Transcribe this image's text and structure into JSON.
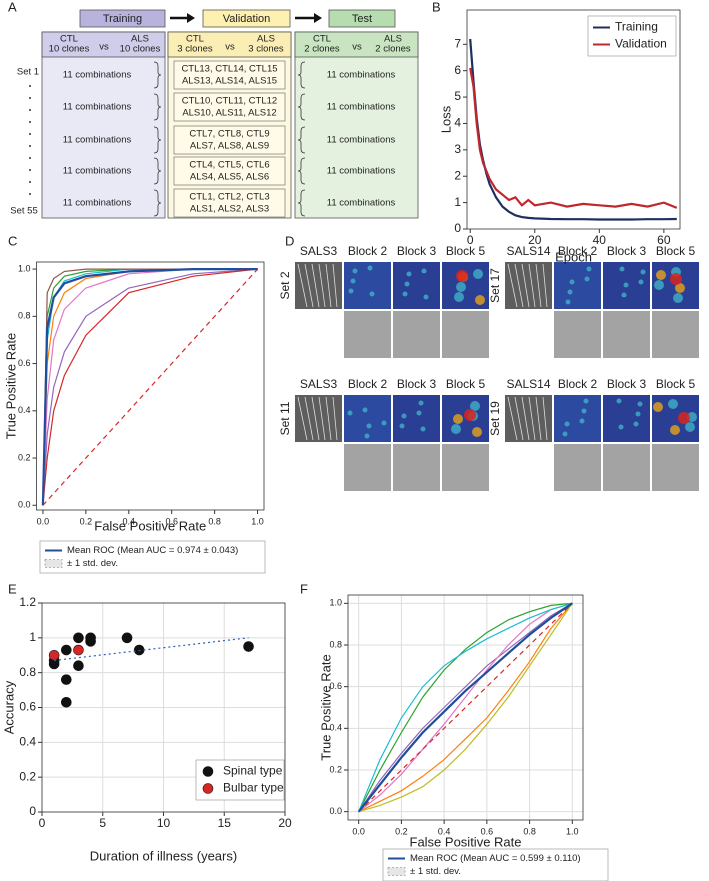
{
  "panels": [
    "A",
    "B",
    "C",
    "D",
    "E",
    "F"
  ],
  "diagram": {
    "stages": [
      "Training",
      "Validation",
      "Test"
    ],
    "columns": [
      {
        "ctl": "CTL",
        "ctl_n": "10 clones",
        "vs": "vs",
        "als": "ALS",
        "als_n": "10 clones",
        "rows": [
          "11 combinations",
          "11 combinations",
          "11 combinations",
          "11 combinations",
          "11 combinations"
        ]
      },
      {
        "ctl": "CTL",
        "ctl_n": "3 clones",
        "vs": "vs",
        "als": "ALS",
        "als_n": "3 clones",
        "rows": [
          [
            "CTL13, CTL14, CTL15",
            "ALS13, ALS14, ALS15"
          ],
          [
            "CTL10, CTL11, CTL12",
            "ALS10, ALS11, ALS12"
          ],
          [
            "CTL7, CTL8, CTL9",
            "ALS7, ALS8, ALS9"
          ],
          [
            "CTL4, CTL5, CTL6",
            "ALS4, ALS5, ALS6"
          ],
          [
            "CTL1, CTL2, CTL3",
            "ALS1, ALS2, ALS3"
          ]
        ]
      },
      {
        "ctl": "CTL",
        "ctl_n": "2 clones",
        "vs": "vs",
        "als": "ALS",
        "als_n": "2 clones",
        "rows": [
          "11 combinations",
          "11 combinations",
          "11 combinations",
          "11 combinations",
          "11 combinations"
        ]
      }
    ],
    "set_first": "Set 1",
    "set_last": "Set 55"
  },
  "heatmaps": [
    {
      "sample": "SALS3",
      "set": "Set 2",
      "blocks": [
        "Block 2",
        "Block 3",
        "Block 5"
      ]
    },
    {
      "sample": "SALS14",
      "set": "Set 17",
      "blocks": [
        "Block 2",
        "Block 3",
        "Block 5"
      ]
    },
    {
      "sample": "SALS3",
      "set": "Set 11",
      "blocks": [
        "Block 2",
        "Block 3",
        "Block 5"
      ]
    },
    {
      "sample": "SALS14",
      "set": "Set 19",
      "blocks": [
        "Block 2",
        "Block 3",
        "Block 5"
      ]
    }
  ],
  "chart_data": [
    {
      "type": "line",
      "x_label": "Epoch",
      "y_label": "Loss",
      "xlim": [
        -1,
        65
      ],
      "ylim": [
        0,
        8.3
      ],
      "xticks": [
        0,
        20,
        40,
        60
      ],
      "yticks": [
        0,
        1,
        2,
        3,
        4,
        5,
        6,
        7
      ],
      "grid": false,
      "legend": "upper right",
      "x": [
        0,
        1,
        2,
        3,
        4,
        5,
        6,
        8,
        10,
        12,
        14,
        16,
        18,
        20,
        25,
        30,
        35,
        40,
        45,
        50,
        55,
        60,
        64
      ],
      "series": [
        {
          "name": "Training",
          "color": "#1f2f5f",
          "values": [
            7.2,
            5.6,
            4.2,
            3.2,
            2.6,
            2.1,
            1.7,
            1.2,
            0.85,
            0.65,
            0.52,
            0.45,
            0.42,
            0.4,
            0.38,
            0.37,
            0.37,
            0.36,
            0.36,
            0.36,
            0.37,
            0.37,
            0.38
          ]
        },
        {
          "name": "Validation",
          "color": "#c0272d",
          "values": [
            6.1,
            5.4,
            4.0,
            3.0,
            2.5,
            2.2,
            1.9,
            1.5,
            1.3,
            1.1,
            1.2,
            0.9,
            1.1,
            0.9,
            1.0,
            0.85,
            0.95,
            0.9,
            0.85,
            0.95,
            0.85,
            1.0,
            0.8
          ]
        }
      ]
    },
    {
      "type": "roc",
      "x_label": "False Positive Rate",
      "y_label": "True Positive Rate",
      "xlim": [
        -0.03,
        1.03
      ],
      "ylim": [
        -0.02,
        1.03
      ],
      "xticks": [
        {
          "value": 0,
          "label": "0.0"
        },
        0.2,
        0.4,
        0.6,
        0.8,
        {
          "value": 1,
          "label": "1.0"
        }
      ],
      "yticks": [
        {
          "value": 0,
          "label": "0.0"
        },
        0.2,
        0.4,
        0.6,
        0.8,
        {
          "value": 1,
          "label": "1.0"
        }
      ],
      "grid": false,
      "legend": "below",
      "band_label": "± 1 std. dev.",
      "series": [
        {
          "color": "#2ca02c",
          "x": [
            0,
            0.02,
            0.05,
            0.1,
            0.2,
            0.4,
            0.7,
            1
          ],
          "values": [
            0,
            0.8,
            0.92,
            0.97,
            0.99,
            1,
            1,
            1
          ]
        },
        {
          "color": "#ff7f0e",
          "x": [
            0,
            0.02,
            0.05,
            0.1,
            0.2,
            0.4,
            0.7,
            1
          ],
          "values": [
            0,
            0.6,
            0.8,
            0.9,
            0.96,
            0.99,
            1,
            1
          ]
        },
        {
          "color": "#9467bd",
          "x": [
            0,
            0.02,
            0.05,
            0.1,
            0.2,
            0.4,
            0.7,
            1
          ],
          "values": [
            0,
            0.3,
            0.5,
            0.65,
            0.8,
            0.92,
            0.98,
            1
          ]
        },
        {
          "color": "#d62728",
          "x": [
            0,
            0.02,
            0.05,
            0.1,
            0.2,
            0.4,
            0.7,
            1
          ],
          "values": [
            0,
            0.2,
            0.4,
            0.55,
            0.72,
            0.9,
            0.97,
            1
          ]
        },
        {
          "color": "#17becf",
          "x": [
            0,
            0.02,
            0.05,
            0.1,
            0.2,
            0.4,
            0.7,
            1
          ],
          "values": [
            0,
            0.7,
            0.88,
            0.95,
            0.98,
            1,
            1,
            1
          ]
        },
        {
          "color": "#e377c2",
          "x": [
            0,
            0.02,
            0.05,
            0.1,
            0.2,
            0.4,
            0.7,
            1
          ],
          "values": [
            0,
            0.45,
            0.7,
            0.83,
            0.92,
            0.98,
            1,
            1
          ]
        },
        {
          "color": "#8c564b",
          "x": [
            0,
            0.02,
            0.05,
            0.1,
            0.2,
            0.4,
            0.7,
            1
          ],
          "values": [
            0,
            0.9,
            0.96,
            0.99,
            1,
            1,
            1,
            1
          ]
        },
        {
          "color": "#d62728",
          "line_style": "dashed",
          "x": [
            0,
            1
          ],
          "values": [
            0,
            1
          ]
        },
        {
          "name": "Mean ROC (Mean AUC = 0.974 ± 0.043)",
          "color": "#1f4e9c",
          "x": [
            0,
            0.02,
            0.05,
            0.1,
            0.2,
            0.4,
            0.7,
            1
          ],
          "values": [
            0,
            0.75,
            0.88,
            0.94,
            0.97,
            0.99,
            1,
            1
          ]
        }
      ]
    },
    {
      "type": "scatter",
      "x_label": "Duration of illness (years)",
      "y_label": "Accuracy",
      "xlim": [
        0,
        20
      ],
      "ylim": [
        0,
        1.2
      ],
      "xticks": [
        0,
        5,
        10,
        15,
        20
      ],
      "yticks": [
        0,
        0.2,
        0.4,
        0.6,
        0.8,
        1,
        1.2
      ],
      "grid": true,
      "legend": "lower right",
      "series": [
        {
          "name": "Spinal type",
          "color": "#111111",
          "x": [
            1,
            1,
            2,
            2,
            2,
            3,
            3,
            4,
            4,
            7,
            8,
            17
          ],
          "values": [
            0.85,
            0.87,
            0.93,
            0.76,
            0.63,
            1.0,
            0.84,
            0.98,
            1.0,
            1.0,
            0.93,
            0.95
          ]
        },
        {
          "name": "Bulbar type",
          "color": "#d62728",
          "x": [
            1,
            3
          ],
          "values": [
            0.9,
            0.93
          ]
        },
        {
          "color": "#2b5fb4",
          "mode": "line",
          "line_style": "dotted",
          "x": [
            1,
            17
          ],
          "values": [
            0.87,
            1.0
          ]
        }
      ]
    },
    {
      "type": "roc",
      "x_label": "False Positive Rate",
      "y_label": "True Positive Rate",
      "xlim": [
        -0.05,
        1.05
      ],
      "ylim": [
        -0.04,
        1.04
      ],
      "xticks": [
        {
          "value": 0,
          "label": "0.0"
        },
        0.2,
        0.4,
        0.6,
        0.8,
        {
          "value": 1,
          "label": "1.0"
        }
      ],
      "yticks": [
        {
          "value": 0,
          "label": "0.0"
        },
        0.2,
        0.4,
        0.6,
        0.8,
        {
          "value": 1,
          "label": "1.0"
        }
      ],
      "grid": true,
      "legend": "below",
      "band_label": "± 1 std. dev.",
      "series": [
        {
          "color": "#2ca02c",
          "x": [
            0,
            0.1,
            0.2,
            0.3,
            0.4,
            0.5,
            0.6,
            0.7,
            0.8,
            0.9,
            1
          ],
          "values": [
            0,
            0.2,
            0.38,
            0.55,
            0.68,
            0.78,
            0.86,
            0.92,
            0.96,
            0.99,
            1
          ]
        },
        {
          "color": "#ff7f0e",
          "x": [
            0,
            0.1,
            0.2,
            0.3,
            0.4,
            0.5,
            0.6,
            0.7,
            0.8,
            0.9,
            1
          ],
          "values": [
            0,
            0.05,
            0.1,
            0.17,
            0.25,
            0.35,
            0.45,
            0.58,
            0.72,
            0.88,
            1
          ]
        },
        {
          "color": "#9467bd",
          "x": [
            0,
            0.1,
            0.2,
            0.3,
            0.4,
            0.5,
            0.6,
            0.7,
            0.8,
            0.9,
            1
          ],
          "values": [
            0,
            0.15,
            0.28,
            0.4,
            0.5,
            0.6,
            0.7,
            0.78,
            0.86,
            0.94,
            1
          ]
        },
        {
          "color": "#e377c2",
          "x": [
            0,
            0.1,
            0.2,
            0.3,
            0.4,
            0.5,
            0.6,
            0.7,
            0.8,
            0.9,
            1
          ],
          "values": [
            0,
            0.08,
            0.18,
            0.3,
            0.42,
            0.55,
            0.68,
            0.8,
            0.9,
            0.97,
            1
          ]
        },
        {
          "color": "#17becf",
          "x": [
            0,
            0.1,
            0.2,
            0.3,
            0.4,
            0.5,
            0.6,
            0.7,
            0.8,
            0.9,
            1
          ],
          "values": [
            0,
            0.25,
            0.45,
            0.6,
            0.7,
            0.77,
            0.83,
            0.88,
            0.93,
            0.97,
            1
          ]
        },
        {
          "color": "#bcbd22",
          "x": [
            0,
            0.1,
            0.2,
            0.3,
            0.4,
            0.5,
            0.6,
            0.7,
            0.8,
            0.9,
            1
          ],
          "values": [
            0,
            0.03,
            0.07,
            0.12,
            0.2,
            0.3,
            0.42,
            0.55,
            0.7,
            0.85,
            1
          ]
        },
        {
          "color": "#d62728",
          "line_style": "dashed",
          "x": [
            0,
            1
          ],
          "values": [
            0,
            1
          ]
        },
        {
          "name": "Mean ROC (Mean AUC = 0.599 ± 0.110)",
          "color": "#1f4e9c",
          "x": [
            0,
            0.1,
            0.2,
            0.3,
            0.4,
            0.5,
            0.6,
            0.7,
            0.8,
            0.9,
            1
          ],
          "values": [
            0,
            0.13,
            0.26,
            0.38,
            0.48,
            0.58,
            0.67,
            0.76,
            0.85,
            0.93,
            1
          ]
        }
      ]
    }
  ]
}
